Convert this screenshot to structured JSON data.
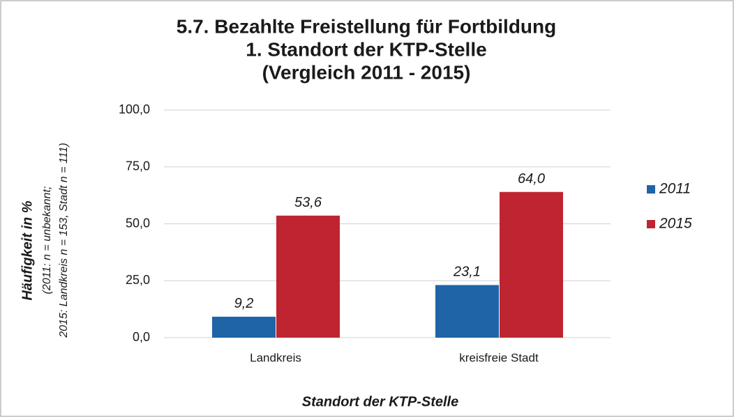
{
  "chart_data": {
    "type": "bar",
    "title": [
      "5.7. Bezahlte Freistellung für Fortbildung",
      "1. Standort der KTP-Stelle",
      "(Vergleich 2011 - 2015)"
    ],
    "ylabel": [
      "Häufigkeit in %",
      "(2011: n = unbekannt;",
      "2015: Landkreis n = 153, Stadt n = 111)"
    ],
    "xlabel": "Standort der KTP-Stelle",
    "categories": [
      "Landkreis",
      "kreisfreie Stadt"
    ],
    "series": [
      {
        "name": "2011",
        "color": "#1f64a6",
        "values": [
          9.2,
          23.1
        ],
        "value_labels": [
          "9,2",
          "23,1"
        ]
      },
      {
        "name": "2015",
        "color": "#be2530",
        "values": [
          53.6,
          64.0
        ],
        "value_labels": [
          "53,6",
          "64,0"
        ]
      }
    ],
    "ylim": [
      0,
      100
    ],
    "yticks": [
      {
        "value": 0,
        "label": "0,0"
      },
      {
        "value": 25,
        "label": "25,0"
      },
      {
        "value": 50,
        "label": "50,0"
      },
      {
        "value": 75,
        "label": "75,0"
      },
      {
        "value": 100,
        "label": "100,0"
      }
    ],
    "grid": true,
    "legend": "right"
  }
}
